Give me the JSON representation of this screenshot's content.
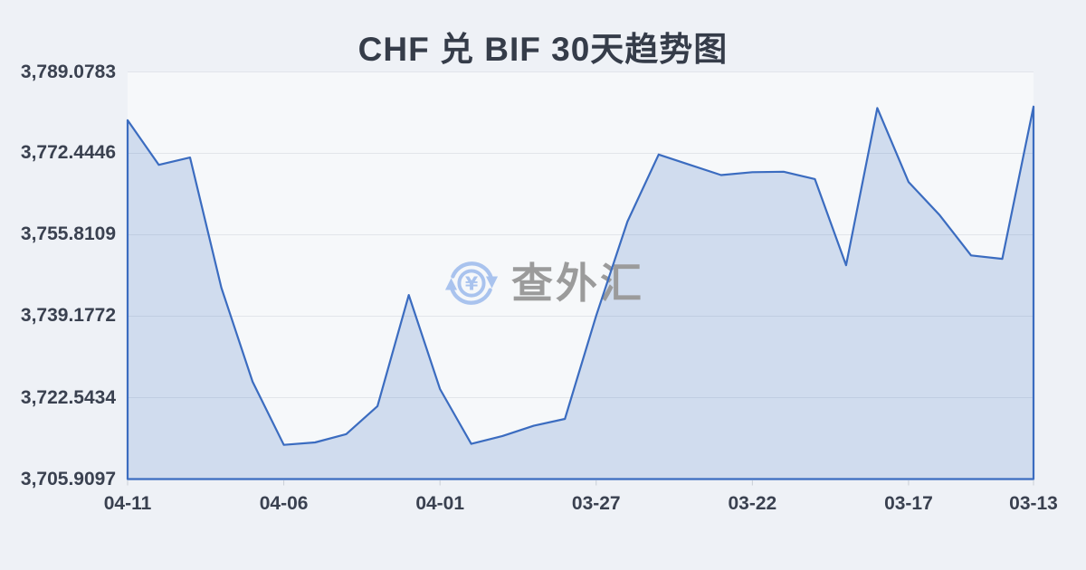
{
  "title": "CHF 兑 BIF 30天趋势图",
  "watermark": {
    "icon": "yen-circular-arrows-icon",
    "text": "查外汇"
  },
  "colors": {
    "page_bg": "#eef1f6",
    "plot_bg": "#f6f8fa",
    "grid": "#e2e5ea",
    "line": "#3b6cc0",
    "area_fill": "rgba(59,108,192,0.20)",
    "tick": "#c9ced6",
    "title_color": "#353c49",
    "axis_color": "#3a4150",
    "watermark_text_color": "#9b9b9b",
    "watermark_icon_color": "#a9c3ee"
  },
  "chart_data": {
    "type": "area",
    "title": "CHF 兑 BIF 30天趋势图",
    "xlabel": "",
    "ylabel": "",
    "grid": "horizontal",
    "legend_visible": false,
    "ylim": [
      3705.9097,
      3789.0783
    ],
    "x": [
      "04-11",
      "04-10",
      "04-09",
      "04-08",
      "04-07",
      "04-06",
      "04-05",
      "04-04",
      "04-03",
      "04-02",
      "04-01",
      "03-31",
      "03-30",
      "03-29",
      "03-28",
      "03-27",
      "03-26",
      "03-25",
      "03-24",
      "03-23",
      "03-22",
      "03-21",
      "03-20",
      "03-19",
      "03-18",
      "03-17",
      "03-16",
      "03-15",
      "03-14",
      "03-13"
    ],
    "series": [
      {
        "name": "CHF/BIF",
        "values": [
          3779.2,
          3770.1,
          3771.6,
          3745.0,
          3725.8,
          3712.9,
          3713.4,
          3715.1,
          3720.8,
          3743.5,
          3724.3,
          3713.1,
          3714.7,
          3716.8,
          3718.2,
          3739.3,
          3758.5,
          3772.2,
          3770.1,
          3768.0,
          3768.6,
          3768.7,
          3767.2,
          3749.6,
          3781.7,
          3766.6,
          3759.8,
          3751.6,
          3750.9,
          3782.0
        ]
      }
    ],
    "y_ticks": [
      {
        "label": "3,789.0783",
        "value": 3789.0783
      },
      {
        "label": "3,772.4446",
        "value": 3772.4446
      },
      {
        "label": "3,755.8109",
        "value": 3755.8109
      },
      {
        "label": "3,739.1772",
        "value": 3739.1772
      },
      {
        "label": "3,722.5434",
        "value": 3722.5434
      },
      {
        "label": "3,705.9097",
        "value": 3705.9097
      }
    ],
    "x_ticks": [
      {
        "label": "04-11",
        "index": 0
      },
      {
        "label": "04-06",
        "index": 5
      },
      {
        "label": "04-01",
        "index": 10
      },
      {
        "label": "03-27",
        "index": 15
      },
      {
        "label": "03-22",
        "index": 20
      },
      {
        "label": "03-17",
        "index": 25
      },
      {
        "label": "03-13",
        "index": 29
      }
    ]
  }
}
